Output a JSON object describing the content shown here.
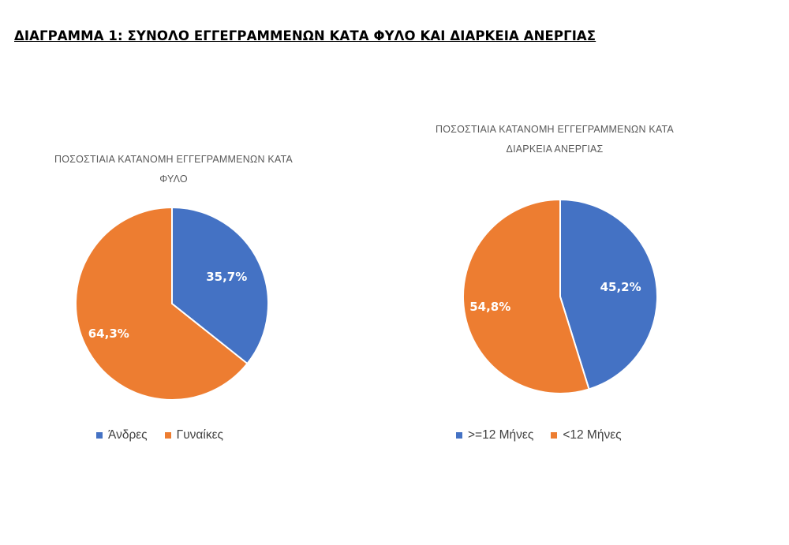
{
  "page": {
    "title": "ΔΙΑΓΡΑΜΜΑ 1: ΣΥΝΟΛΟ ΕΓΓΕΓΡΑΜΜΕΝΩΝ ΚΑΤΑ ΦΥΛΟ ΚΑΙ ΔΙΑΡΚΕΙΑ ΑΝΕΡΓΙΑΣ"
  },
  "chart_data": [
    {
      "type": "pie",
      "title_line1": "ΠΟΣΟΣΤΙΑΙΑ ΚΑΤΑΝΟΜΗ ΕΓΓΕΓΡΑΜΜΕΝΩΝ ΚΑΤΑ",
      "title_line2": "ΦΥΛΟ",
      "categories": [
        "Άνδρες",
        "Γυναίκες"
      ],
      "values": [
        35.7,
        64.3
      ],
      "labels": [
        "35,7%",
        "64,3%"
      ],
      "colors": [
        "#4472C4",
        "#ED7D31"
      ],
      "legend_position": "bottom"
    },
    {
      "type": "pie",
      "title_line1": "ΠΟΣΟΣΤΙΑΙΑ ΚΑΤΑΝΟΜΗ ΕΓΓΕΓΡΑΜΜΕΝΩΝ ΚΑΤΑ",
      "title_line2": "ΔΙΑΡΚΕΙΑ ΑΝΕΡΓΙΑΣ",
      "categories": [
        ">=12 Μήνες",
        "<12 Μήνες"
      ],
      "values": [
        45.2,
        54.8
      ],
      "labels": [
        "45,2%",
        "54,8%"
      ],
      "colors": [
        "#4472C4",
        "#ED7D31"
      ],
      "legend_position": "bottom"
    }
  ]
}
